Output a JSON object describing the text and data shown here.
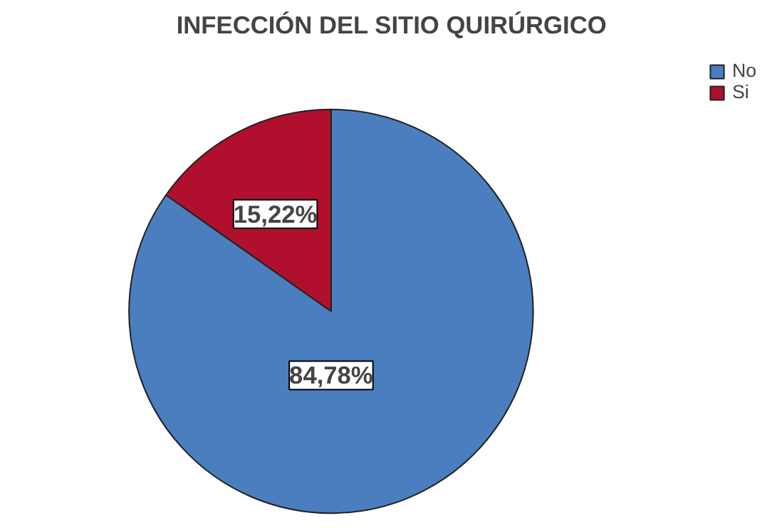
{
  "chart_data": {
    "type": "pie",
    "title": "INFECCIÓN DEL SITIO QUIRÚRGICO",
    "categories": [
      "No",
      "Si"
    ],
    "values": [
      84.78,
      15.22
    ],
    "colors": [
      "#4a7ebf",
      "#b0102e"
    ],
    "value_labels": [
      "84,78%",
      "15,22%"
    ],
    "legend": "top right"
  }
}
